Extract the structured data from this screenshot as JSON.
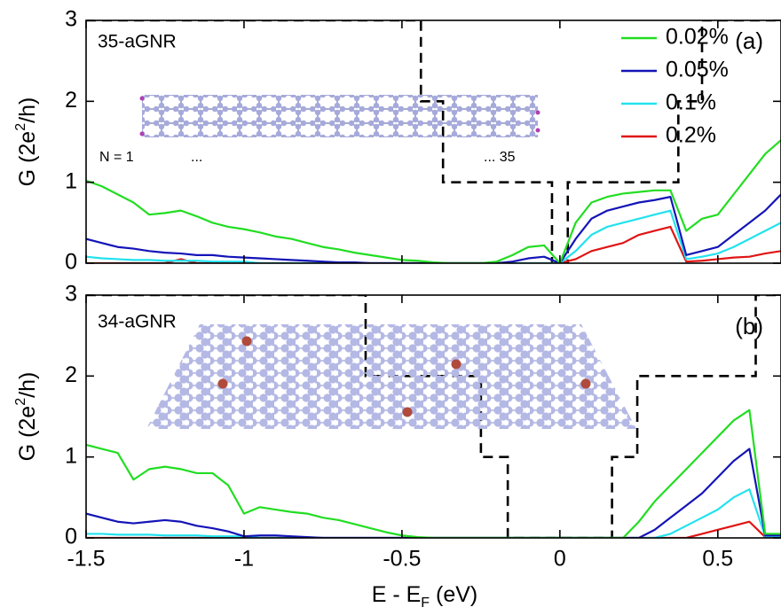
{
  "chart_data": [
    {
      "type": "line",
      "ylabel": [
        "G (2e",
        "2",
        "/h)"
      ],
      "annotations": [
        "35-aGNR",
        "(a)",
        "N = 1",
        "...",
        "... 35"
      ],
      "x": [
        -1.5,
        -1.45,
        -1.4,
        -1.35,
        -1.3,
        -1.25,
        -1.2,
        -1.15,
        -1.1,
        -1.05,
        -1,
        -0.95,
        -0.9,
        -0.85,
        -0.8,
        -0.75,
        -0.7,
        -0.65,
        -0.6,
        -0.55,
        -0.5,
        -0.45,
        -0.4,
        -0.35,
        -0.3,
        -0.25,
        -0.2,
        -0.15,
        -0.1,
        -0.05,
        0,
        0.05,
        0.1,
        0.15,
        0.2,
        0.25,
        0.3,
        0.35,
        0.4,
        0.45,
        0.5,
        0.55,
        0.6,
        0.65,
        0.7
      ],
      "series": [
        {
          "name": "0.02%",
          "color": "#22dd22",
          "values": [
            1.02,
            0.95,
            0.85,
            0.75,
            0.6,
            0.62,
            0.65,
            0.58,
            0.5,
            0.45,
            0.42,
            0.38,
            0.33,
            0.3,
            0.25,
            0.2,
            0.17,
            0.13,
            0.1,
            0.07,
            0.04,
            0.03,
            0.01,
            0,
            0,
            0,
            0.02,
            0.1,
            0.2,
            0.22,
            0,
            0.5,
            0.75,
            0.82,
            0.86,
            0.88,
            0.9,
            0.9,
            0.4,
            0.55,
            0.6,
            0.85,
            1.1,
            1.35,
            1.52
          ]
        },
        {
          "name": "0.05%",
          "color": "#1414b8",
          "values": [
            0.3,
            0.25,
            0.2,
            0.18,
            0.15,
            0.13,
            0.12,
            0.1,
            0.1,
            0.08,
            0.07,
            0.06,
            0.05,
            0.04,
            0.03,
            0.02,
            0.01,
            0.01,
            0,
            0,
            0,
            0,
            0,
            0,
            0,
            0,
            0,
            0.02,
            0.06,
            0.08,
            0,
            0.3,
            0.55,
            0.65,
            0.7,
            0.75,
            0.78,
            0.82,
            0.1,
            0.15,
            0.2,
            0.35,
            0.5,
            0.65,
            0.85
          ]
        },
        {
          "name": "0.1%",
          "color": "#22e2ee",
          "values": [
            0.08,
            0.06,
            0.05,
            0.04,
            0.04,
            0.03,
            0.03,
            0.03,
            0.02,
            0.02,
            0.02,
            0,
            0,
            0,
            0,
            0,
            0,
            0,
            0,
            0,
            0,
            0,
            0,
            0,
            0,
            0,
            0,
            0,
            0,
            0,
            0,
            0.15,
            0.35,
            0.45,
            0.5,
            0.55,
            0.6,
            0.65,
            0.05,
            0.08,
            0.12,
            0.2,
            0.3,
            0.4,
            0.5
          ]
        },
        {
          "name": "0.2%",
          "color": "#e01414",
          "values": [
            0,
            0,
            0,
            0,
            0,
            0,
            0.05,
            0,
            0,
            0,
            0,
            0,
            0,
            0,
            0,
            0,
            0,
            0,
            0,
            0,
            0,
            0,
            0,
            0,
            0,
            0,
            0,
            0,
            0,
            0,
            0,
            0.05,
            0.15,
            0.2,
            0.25,
            0.35,
            0.4,
            0.45,
            0.02,
            0.03,
            0.05,
            0.07,
            0.08,
            0.12,
            0.15
          ]
        }
      ],
      "steps": {
        "color": "#000000",
        "x": [
          -1.5,
          -0.44,
          -0.44,
          -0.37,
          -0.37,
          -0.025,
          -0.025,
          0.025,
          0.025,
          0.375,
          0.375,
          0.45,
          0.45,
          0.7
        ],
        "values": [
          3,
          3,
          2,
          2,
          1,
          1,
          0,
          0,
          1,
          1,
          2,
          2,
          3,
          3
        ]
      },
      "xlim": [
        -1.5,
        0.7
      ],
      "ylim": [
        0,
        3
      ],
      "xticks": [
        -1.5,
        -1,
        -0.5,
        0,
        0.5
      ],
      "show_xtick_labels": false,
      "yticks": [
        0,
        1,
        2,
        3
      ],
      "legend": "upper right"
    },
    {
      "type": "line",
      "ylabel": [
        "G (2e",
        "2",
        "/h)"
      ],
      "xlabel": [
        "E - E",
        "F",
        " (eV)"
      ],
      "annotations": [
        "34-aGNR",
        "(b)"
      ],
      "x": [
        -1.5,
        -1.45,
        -1.4,
        -1.35,
        -1.3,
        -1.25,
        -1.2,
        -1.15,
        -1.1,
        -1.05,
        -1,
        -0.95,
        -0.9,
        -0.85,
        -0.8,
        -0.75,
        -0.7,
        -0.65,
        -0.6,
        -0.55,
        -0.5,
        -0.45,
        -0.4,
        -0.35,
        -0.3,
        -0.25,
        -0.2,
        -0.15,
        -0.1,
        -0.05,
        0,
        0.05,
        0.1,
        0.15,
        0.2,
        0.25,
        0.3,
        0.35,
        0.4,
        0.45,
        0.5,
        0.55,
        0.6,
        0.65,
        0.7
      ],
      "series": [
        {
          "color": "#22dd22",
          "values": [
            1.15,
            1.1,
            1.05,
            0.72,
            0.85,
            0.88,
            0.85,
            0.8,
            0.8,
            0.65,
            0.3,
            0.38,
            0.35,
            0.32,
            0.3,
            0.25,
            0.22,
            0.17,
            0.12,
            0.07,
            0.03,
            0.01,
            0,
            0,
            0,
            0,
            0,
            0,
            0,
            0,
            0,
            0,
            0,
            0,
            0,
            0.2,
            0.45,
            0.65,
            0.85,
            1.05,
            1.25,
            1.45,
            1.58,
            0.05,
            0.05
          ]
        },
        {
          "color": "#1414b8",
          "values": [
            0.3,
            0.25,
            0.2,
            0.18,
            0.2,
            0.22,
            0.2,
            0.15,
            0.12,
            0.08,
            0.02,
            0.03,
            0.03,
            0.02,
            0.01,
            0,
            0,
            0,
            0,
            0,
            0,
            0,
            0,
            0,
            0,
            0,
            0,
            0,
            0,
            0,
            0,
            0,
            0,
            0,
            0,
            0,
            0.1,
            0.25,
            0.4,
            0.55,
            0.75,
            0.95,
            1.1,
            0.03,
            0.03
          ]
        },
        {
          "color": "#22e2ee",
          "values": [
            0.05,
            0.05,
            0.04,
            0.04,
            0.04,
            0.03,
            0.03,
            0.03,
            0.02,
            0.02,
            0.02,
            0,
            0,
            0,
            0,
            0,
            0,
            0,
            0,
            0,
            0,
            0,
            0,
            0,
            0,
            0,
            0,
            0,
            0,
            0,
            0,
            0,
            0,
            0,
            0,
            0,
            0,
            0.05,
            0.15,
            0.25,
            0.35,
            0.5,
            0.6,
            0.02,
            0.02
          ]
        },
        {
          "color": "#e01414",
          "values": [
            0,
            0,
            0,
            0,
            0,
            0,
            0,
            0,
            0,
            0,
            0,
            0,
            0,
            0,
            0,
            0,
            0,
            0,
            0,
            0,
            0,
            0,
            0,
            0,
            0,
            0,
            0,
            0,
            0,
            0,
            0,
            0,
            0,
            0,
            0,
            0,
            0,
            0,
            0,
            0.05,
            0.1,
            0.15,
            0.2,
            0.01,
            0.01
          ]
        }
      ],
      "steps": {
        "color": "#000000",
        "x": [
          -1.5,
          -0.615,
          -0.615,
          -0.25,
          -0.25,
          -0.165,
          -0.165,
          0.165,
          0.165,
          0.245,
          0.245,
          0.62,
          0.62,
          0.7
        ],
        "values": [
          3,
          3,
          2,
          2,
          1,
          1,
          0,
          0,
          1,
          1,
          2,
          2,
          3,
          3
        ]
      },
      "xlim": [
        -1.5,
        0.7
      ],
      "ylim": [
        0,
        3
      ],
      "xticks": [
        -1.5,
        -1,
        -0.5,
        0,
        0.5
      ],
      "show_xtick_labels": true,
      "yticks": [
        0,
        1,
        2,
        3
      ]
    }
  ]
}
